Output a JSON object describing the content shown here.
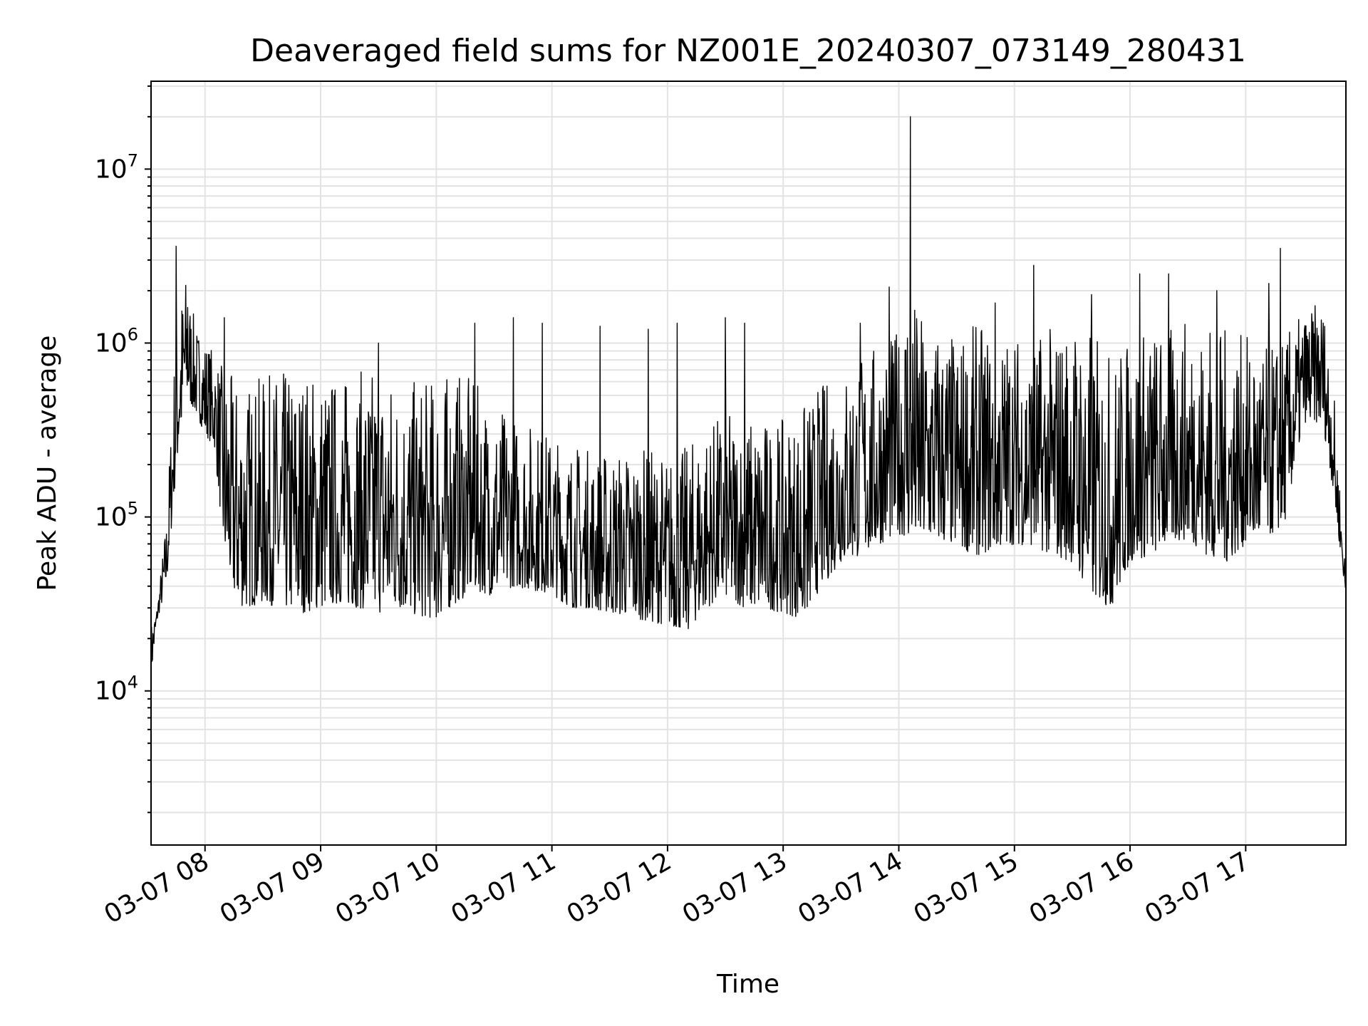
{
  "chart_data": {
    "type": "line",
    "title": "Deaveraged field sums for NZ001E_20240307_073149_280431",
    "xlabel": "Time",
    "ylabel": "Peak ADU - average",
    "yscale": "log",
    "xlim": [
      "03-07 07:32",
      "03-07 17:52"
    ],
    "ylim": [
      1300,
      32000000
    ],
    "grid": true,
    "line_color": "#000000",
    "x_ticks": [
      "03-07 08",
      "03-07 09",
      "03-07 10",
      "03-07 11",
      "03-07 12",
      "03-07 13",
      "03-07 14",
      "03-07 15",
      "03-07 16",
      "03-07 17"
    ],
    "y_ticks": [
      {
        "value": 10000,
        "base": "10",
        "exp": "4"
      },
      {
        "value": 100000,
        "base": "10",
        "exp": "5"
      },
      {
        "value": 1000000,
        "base": "10",
        "exp": "6"
      },
      {
        "value": 10000000,
        "base": "10",
        "exp": "7"
      }
    ],
    "series": [
      {
        "note_points": "approximate envelope of the noisy signal, sampled every ~10 minutes",
        "x": [
          "07:32",
          "07:35",
          "07:40",
          "07:45",
          "07:50",
          "07:55",
          "08:00",
          "08:05",
          "08:10",
          "08:15",
          "08:20",
          "08:30",
          "08:40",
          "08:50",
          "09:00",
          "09:10",
          "09:20",
          "09:30",
          "09:40",
          "09:50",
          "10:00",
          "10:10",
          "10:20",
          "10:30",
          "10:40",
          "10:50",
          "11:00",
          "11:10",
          "11:20",
          "11:30",
          "11:40",
          "11:50",
          "12:00",
          "12:10",
          "12:20",
          "12:30",
          "12:40",
          "12:50",
          "13:00",
          "13:10",
          "13:20",
          "13:30",
          "13:40",
          "13:50",
          "14:00",
          "14:05",
          "14:10",
          "14:20",
          "14:30",
          "14:40",
          "14:50",
          "15:00",
          "15:10",
          "15:20",
          "15:30",
          "15:40",
          "15:50",
          "16:00",
          "16:10",
          "16:20",
          "16:30",
          "16:40",
          "16:50",
          "17:00",
          "17:10",
          "17:20",
          "17:30",
          "17:40",
          "17:45",
          "17:52"
        ],
        "low": [
          12000,
          25000,
          40000,
          180000,
          500000,
          400000,
          300000,
          250000,
          60000,
          35000,
          30000,
          32000,
          30000,
          28000,
          30000,
          32000,
          30000,
          28000,
          30000,
          27000,
          26000,
          32000,
          38000,
          35000,
          40000,
          38000,
          36000,
          30000,
          30000,
          28000,
          27000,
          25000,
          24000,
          22000,
          30000,
          35000,
          30000,
          30000,
          28000,
          26000,
          40000,
          55000,
          60000,
          70000,
          80000,
          75000,
          70000,
          72000,
          68000,
          60000,
          65000,
          70000,
          68000,
          60000,
          55000,
          35000,
          30000,
          55000,
          60000,
          70000,
          75000,
          60000,
          55000,
          70000,
          75000,
          90000,
          350000,
          350000,
          150000,
          35000
        ],
        "high": [
          25000,
          30000,
          100000,
          1400000,
          2500000,
          1300000,
          1100000,
          900000,
          700000,
          650000,
          600000,
          650000,
          700000,
          750000,
          700000,
          650000,
          700000,
          750000,
          650000,
          600000,
          650000,
          700000,
          600000,
          450000,
          400000,
          350000,
          300000,
          280000,
          250000,
          240000,
          260000,
          250000,
          230000,
          260000,
          350000,
          400000,
          380000,
          380000,
          360000,
          450000,
          600000,
          700000,
          900000,
          1000000,
          1200000,
          3000000,
          1500000,
          1300000,
          1100000,
          1300000,
          1200000,
          1200000,
          1100000,
          1300000,
          1400000,
          1200000,
          900000,
          1100000,
          1300000,
          1200000,
          1400000,
          1300000,
          1200000,
          1100000,
          1000000,
          1100000,
          1500000,
          1800000,
          700000,
          45000
        ],
        "spikes": [
          {
            "x": "07:45",
            "y": 3600000
          },
          {
            "x": "07:51",
            "y": 1600000
          },
          {
            "x": "08:10",
            "y": 1400000
          },
          {
            "x": "09:30",
            "y": 1000000
          },
          {
            "x": "10:20",
            "y": 1300000
          },
          {
            "x": "10:40",
            "y": 1400000
          },
          {
            "x": "10:55",
            "y": 1300000
          },
          {
            "x": "11:25",
            "y": 1250000
          },
          {
            "x": "11:50",
            "y": 1200000
          },
          {
            "x": "12:05",
            "y": 1300000
          },
          {
            "x": "12:30",
            "y": 1400000
          },
          {
            "x": "12:40",
            "y": 1300000
          },
          {
            "x": "13:40",
            "y": 1300000
          },
          {
            "x": "13:55",
            "y": 2100000
          },
          {
            "x": "14:06",
            "y": 20000000
          },
          {
            "x": "14:50",
            "y": 1700000
          },
          {
            "x": "15:10",
            "y": 2800000
          },
          {
            "x": "15:40",
            "y": 1900000
          },
          {
            "x": "16:05",
            "y": 2500000
          },
          {
            "x": "16:20",
            "y": 2500000
          },
          {
            "x": "16:45",
            "y": 2000000
          },
          {
            "x": "17:12",
            "y": 2200000
          },
          {
            "x": "17:18",
            "y": 3500000
          }
        ]
      }
    ]
  }
}
